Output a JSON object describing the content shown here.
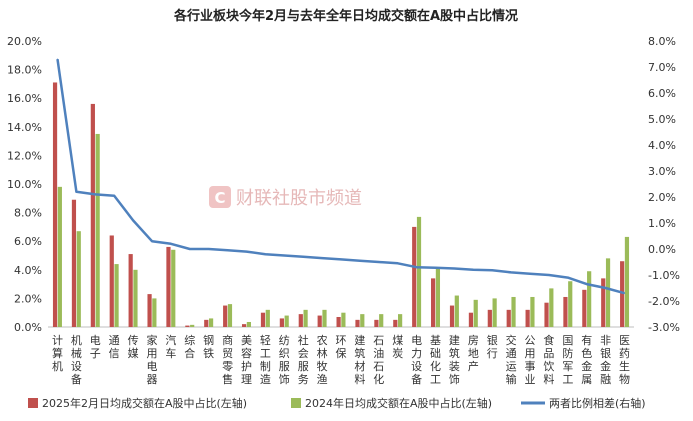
{
  "chart_data": {
    "type": "bar",
    "title": "各行业板块今年2月与去年全年日均成交额在A股中占比情况",
    "watermark": "财联社股市频道",
    "watermark_logo_letter": "C",
    "left_axis": {
      "ylim": [
        0,
        20
      ],
      "ticks": [
        "0.0%",
        "2.0%",
        "4.0%",
        "6.0%",
        "8.0%",
        "10.0%",
        "12.0%",
        "14.0%",
        "16.0%",
        "18.0%",
        "20.0%"
      ]
    },
    "right_axis": {
      "ylim": [
        -3,
        8
      ],
      "ticks": [
        "-3.0%",
        "-2.0%",
        "-1.0%",
        "0.0%",
        "1.0%",
        "2.0%",
        "3.0%",
        "4.0%",
        "5.0%",
        "6.0%",
        "7.0%",
        "8.0%"
      ]
    },
    "categories": [
      "计算机",
      "机械设备",
      "电子",
      "通信",
      "传媒",
      "家用电器",
      "汽车",
      "综合",
      "钢铁",
      "商贸零售",
      "美容护理",
      "轻工制造",
      "纺织服饰",
      "社会服务",
      "农林牧渔",
      "环保",
      "建筑材料",
      "石油石化",
      "煤炭",
      "电力设备",
      "基础化工",
      "建筑装饰",
      "房地产",
      "银行",
      "交通运输",
      "公用事业",
      "食品饮料",
      "国防军工",
      "有色金属",
      "非银金融",
      "医药生物"
    ],
    "series": [
      {
        "name": "2025年2月日均成交额在A股中占比(左轴)",
        "type": "bar",
        "axis": "left",
        "color": "#c0504d",
        "values": [
          17.1,
          8.9,
          15.6,
          6.4,
          5.1,
          2.3,
          5.6,
          0.1,
          0.5,
          1.5,
          0.2,
          1.0,
          0.6,
          0.9,
          0.8,
          0.7,
          0.5,
          0.5,
          0.5,
          7.0,
          3.4,
          1.5,
          1.0,
          1.2,
          1.2,
          1.2,
          1.7,
          2.1,
          2.6,
          3.4,
          4.6
        ]
      },
      {
        "name": "2024年日均成交额在A股中占比(左轴)",
        "type": "bar",
        "axis": "left",
        "color": "#9bbb59",
        "values": [
          9.8,
          6.7,
          13.5,
          4.4,
          4.0,
          2.0,
          5.4,
          0.15,
          0.6,
          1.6,
          0.35,
          1.2,
          0.8,
          1.2,
          1.2,
          1.0,
          0.9,
          0.9,
          0.9,
          7.7,
          4.1,
          2.2,
          1.9,
          2.0,
          2.1,
          2.1,
          2.7,
          3.2,
          3.9,
          4.8,
          6.3
        ]
      },
      {
        "name": "两者比例相差(右轴)",
        "type": "line",
        "axis": "right",
        "color": "#4f81bd",
        "values": [
          7.3,
          2.2,
          2.1,
          2.05,
          1.1,
          0.3,
          0.2,
          0.0,
          0.0,
          -0.05,
          -0.1,
          -0.2,
          -0.25,
          -0.3,
          -0.35,
          -0.4,
          -0.45,
          -0.5,
          -0.55,
          -0.7,
          -0.72,
          -0.75,
          -0.8,
          -0.82,
          -0.9,
          -0.95,
          -1.0,
          -1.1,
          -1.35,
          -1.5,
          -1.7
        ]
      }
    ],
    "legend_position": "bottom",
    "grid": false
  }
}
